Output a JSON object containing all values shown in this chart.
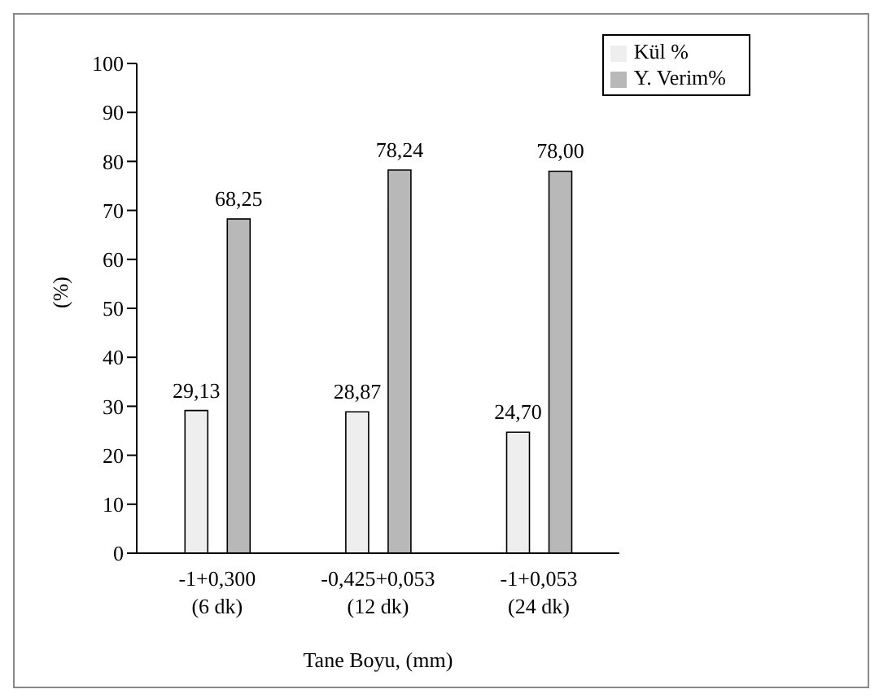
{
  "chart_data": {
    "type": "bar",
    "xlabel": "Tane Boyu, (mm)",
    "ylabel": "(%)",
    "categories": [
      "-1+0,300\n(6 dk)",
      "-0,425+0,053\n(12 dk)",
      "-1+0,053\n(24 dk)"
    ],
    "series": [
      {
        "name": "Kül %",
        "color": "#eeeeee",
        "values": [
          29.13,
          28.87,
          24.7
        ],
        "value_labels": [
          "29,13",
          "28,87",
          "24,70"
        ]
      },
      {
        "name": "Y. Verim%",
        "color": "#b8b8b8",
        "values": [
          68.25,
          78.24,
          78.0
        ],
        "value_labels": [
          "68,25",
          "78,24",
          "78,00"
        ]
      }
    ],
    "ylim": [
      0,
      100
    ],
    "yticks": [
      0,
      10,
      20,
      30,
      40,
      50,
      60,
      70,
      80,
      90,
      100
    ],
    "grid": false,
    "legend": "top right"
  }
}
